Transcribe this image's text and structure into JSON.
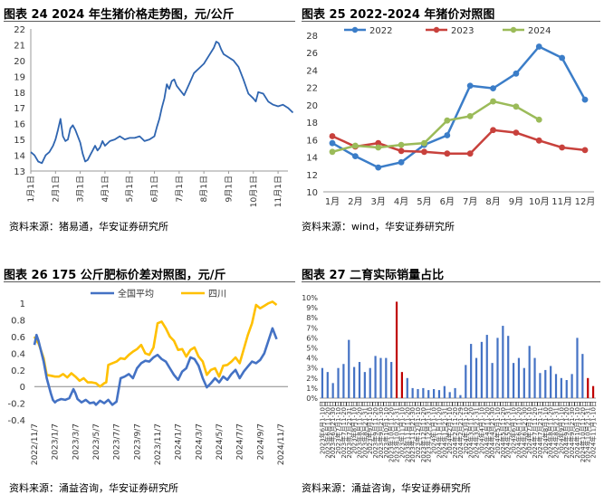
{
  "chart_data": [
    {
      "type": "line",
      "title": "图表 24 2024 年生猪价格走势图，元/公斤",
      "source": "资料来源：猪易通，华安证券研究所",
      "xlabel": "",
      "ylabel": "",
      "categories": [
        "1月1日",
        "2月1日",
        "3月1日",
        "4月1日",
        "5月1日",
        "6月1日",
        "7月1日",
        "8月1日",
        "9月1日",
        "10月1日",
        "11月1日"
      ],
      "ylim": [
        13,
        22
      ],
      "yticks": [
        13,
        14,
        15,
        16,
        17,
        18,
        19,
        20,
        21,
        22
      ],
      "color": "#2f65b0",
      "series": [
        {
          "x": [
            0,
            0.15,
            0.3,
            0.45,
            0.6,
            0.75,
            0.9,
            1.0,
            1.1,
            1.2,
            1.3,
            1.4,
            1.5,
            1.6,
            1.7,
            1.8,
            1.9,
            2.0,
            2.1,
            2.2,
            2.3,
            2.4,
            2.5,
            2.6,
            2.7,
            2.8,
            2.9,
            3.0,
            3.2,
            3.4,
            3.6,
            3.8,
            4.0,
            4.2,
            4.4,
            4.6,
            4.8,
            5.0,
            5.1,
            5.2,
            5.3,
            5.4,
            5.5,
            5.6,
            5.7,
            5.8,
            5.9,
            6.0,
            6.2,
            6.4,
            6.6,
            6.8,
            7.0,
            7.2,
            7.4,
            7.5,
            7.6,
            7.7,
            7.8,
            8.0,
            8.2,
            8.4,
            8.6,
            8.8,
            9.0,
            9.1,
            9.2,
            9.4,
            9.6,
            9.8,
            10.0,
            10.2,
            10.4,
            10.6
          ],
          "values": [
            14.2,
            14.0,
            13.6,
            13.5,
            14.0,
            14.2,
            14.6,
            15.0,
            15.6,
            16.3,
            15.2,
            14.9,
            15.0,
            15.7,
            15.9,
            15.6,
            15.2,
            14.8,
            14.1,
            13.6,
            13.7,
            14.0,
            14.3,
            14.6,
            14.3,
            14.5,
            14.9,
            14.6,
            14.9,
            15.0,
            15.2,
            15.0,
            15.1,
            15.1,
            15.2,
            14.9,
            15.0,
            15.2,
            15.8,
            16.3,
            17.0,
            17.6,
            18.5,
            18.2,
            18.7,
            18.8,
            18.4,
            18.2,
            17.8,
            18.5,
            19.2,
            19.5,
            19.8,
            20.3,
            20.8,
            21.2,
            21.1,
            20.7,
            20.4,
            20.2,
            20.0,
            19.6,
            18.8,
            17.9,
            17.6,
            17.4,
            18.0,
            17.9,
            17.4,
            17.2,
            17.1,
            17.2,
            17.0,
            16.7
          ]
        }
      ]
    },
    {
      "type": "line",
      "title": "图表 25 2022-2024 年猪价对照图",
      "source": "资料来源：wind，华安证券研究所",
      "xlabel": "",
      "ylabel": "",
      "categories": [
        "1月",
        "2月",
        "3月",
        "4月",
        "5月",
        "6月",
        "7月",
        "8月",
        "9月",
        "10月",
        "11月",
        "12月"
      ],
      "ylim": [
        10,
        28
      ],
      "yticks": [
        10,
        12,
        14,
        16,
        18,
        20,
        22,
        24,
        26,
        28
      ],
      "legend": "top",
      "series": [
        {
          "name": "2022",
          "color": "#3b7dc8",
          "values": [
            15.6,
            14.1,
            12.8,
            13.4,
            15.4,
            16.5,
            22.2,
            21.9,
            23.6,
            26.7,
            25.4,
            20.6
          ]
        },
        {
          "name": "2023",
          "color": "#c8413c",
          "values": [
            16.4,
            15.2,
            15.6,
            14.7,
            14.6,
            14.4,
            14.4,
            17.1,
            16.8,
            15.9,
            15.1,
            14.8
          ]
        },
        {
          "name": "2024",
          "color": "#9bbb59",
          "values": [
            14.6,
            15.3,
            15.1,
            15.4,
            15.6,
            18.2,
            18.7,
            20.4,
            19.8,
            18.3,
            null,
            null
          ]
        }
      ]
    },
    {
      "type": "line",
      "title": "图表 26 175 公斤肥标价差对照图，元/斤",
      "source": "资料来源：涌益咨询，华安证券研究所",
      "xlabel": "",
      "ylabel": "",
      "categories": [
        "2022/11/7",
        "2023/1/7",
        "2023/3/7",
        "2023/5/7",
        "2023/7/7",
        "2023/9/7",
        "2023/11/7",
        "2024/1/7",
        "2024/3/7",
        "2024/5/7",
        "2024/7/7",
        "2024/9/7",
        "2024/11/7"
      ],
      "ylim": [
        -0.4,
        1.1
      ],
      "yticks": [
        -0.4,
        -0.2,
        0,
        0.2,
        0.4,
        0.6,
        0.8,
        1.0
      ],
      "ytick_labels": [
        "-0.4",
        "-0.2",
        "0",
        "0.2",
        "0.4",
        "0.6",
        "0.8",
        "1"
      ],
      "legend": "top",
      "series": [
        {
          "name": "全国平均",
          "color": "#4472c4",
          "x": [
            0,
            0.1,
            0.2,
            0.3,
            0.45,
            0.6,
            0.8,
            0.9,
            1.0,
            1.1,
            1.3,
            1.5,
            1.7,
            1.9,
            2.0,
            2.1,
            2.3,
            2.5,
            2.7,
            2.9,
            3.0,
            3.2,
            3.4,
            3.6,
            3.8,
            4.0,
            4.2,
            4.4,
            4.6,
            4.8,
            5.0,
            5.2,
            5.4,
            5.6,
            5.8,
            6.0,
            6.2,
            6.4,
            6.6,
            6.8,
            7.0,
            7.2,
            7.4,
            7.6,
            7.8,
            8.0,
            8.2,
            8.4,
            8.6,
            8.8,
            9.0,
            9.2,
            9.4,
            9.6,
            9.8,
            10.0,
            10.2,
            10.4,
            10.6,
            10.8,
            11.0,
            11.2,
            11.4,
            11.6,
            11.8
          ],
          "values": [
            0.5,
            0.62,
            0.55,
            0.45,
            0.3,
            0.1,
            -0.08,
            -0.16,
            -0.19,
            -0.17,
            -0.15,
            -0.16,
            -0.14,
            -0.03,
            -0.08,
            -0.15,
            -0.19,
            -0.16,
            -0.2,
            -0.19,
            -0.22,
            -0.17,
            -0.2,
            -0.16,
            -0.22,
            -0.18,
            0.1,
            0.12,
            0.15,
            0.1,
            0.22,
            0.28,
            0.31,
            0.3,
            0.35,
            0.38,
            0.33,
            0.3,
            0.22,
            0.14,
            0.08,
            0.18,
            0.22,
            0.35,
            0.33,
            0.25,
            0.1,
            -0.01,
            0.04,
            0.1,
            0.05,
            0.12,
            0.08,
            0.15,
            0.2,
            0.1,
            0.18,
            0.24,
            0.3,
            0.28,
            0.32,
            0.4,
            0.55,
            0.7,
            0.57
          ]
        },
        {
          "name": "四川",
          "color": "#ffc000",
          "x": [
            0,
            0.1,
            0.2,
            0.3,
            0.45,
            0.6,
            0.8,
            1.0,
            1.2,
            1.4,
            1.6,
            1.8,
            2.0,
            2.2,
            2.4,
            2.6,
            2.8,
            3.0,
            3.2,
            3.4,
            3.5,
            3.6,
            3.8,
            4.0,
            4.2,
            4.4,
            4.6,
            4.8,
            5.0,
            5.2,
            5.4,
            5.6,
            5.8,
            6.0,
            6.2,
            6.4,
            6.6,
            6.8,
            7.0,
            7.2,
            7.4,
            7.6,
            7.8,
            8.0,
            8.2,
            8.4,
            8.6,
            8.8,
            9.0,
            9.2,
            9.4,
            9.6,
            9.8,
            10.0,
            10.2,
            10.4,
            10.6,
            10.8,
            11.0,
            11.2,
            11.4,
            11.6,
            11.8
          ],
          "values": [
            0.6,
            0.55,
            0.52,
            0.45,
            0.34,
            0.14,
            0.13,
            0.12,
            0.12,
            0.15,
            0.11,
            0.16,
            0.12,
            0.07,
            0.1,
            0.05,
            0.05,
            0.04,
            0.0,
            0.04,
            0.05,
            0.26,
            0.28,
            0.3,
            0.34,
            0.33,
            0.38,
            0.42,
            0.45,
            0.5,
            0.4,
            0.38,
            0.47,
            0.76,
            0.78,
            0.7,
            0.6,
            0.55,
            0.44,
            0.45,
            0.36,
            0.44,
            0.47,
            0.36,
            0.3,
            0.14,
            0.2,
            0.22,
            0.12,
            0.25,
            0.26,
            0.3,
            0.35,
            0.28,
            0.45,
            0.62,
            0.76,
            0.98,
            0.94,
            0.97,
            1.0,
            1.02,
            0.98
          ]
        }
      ]
    },
    {
      "type": "bar",
      "title": "图表 27 二育实际销量占比",
      "source": "资料来源：涌益咨询，华安证券研究所",
      "xlabel": "",
      "ylabel": "",
      "ylim": [
        0,
        10
      ],
      "ytick_labels": [
        "0%",
        "1%",
        "2%",
        "3%",
        "4%",
        "5%",
        "6%",
        "7%",
        "8%",
        "9%",
        "10%"
      ],
      "categories": [
        "2023年6月1-10日",
        "2023年6月11-20日",
        "2023年6月21-30日",
        "2023年7月1-10日",
        "2023年7月11-20日",
        "2023年7月21-31日",
        "2023年8月1-10日",
        "2023年8月11-20日",
        "2023年8月21-31日",
        "2023年9月1-10日",
        "2023年9月11-20日",
        "2023年9月21-30日",
        "2023年10月1-10日",
        "2023年10月11-20日",
        "2023年10月21-31日",
        "2023年11月1-10日",
        "2023年11月11-20日",
        "2023年11月21-30日",
        "2023年12月1-10日",
        "2023年12月11-20日",
        "2023年12月21-31日",
        "2024年1月1-10日",
        "2024年1月11-20日",
        "2024年1月21-31日",
        "2024年2月1-10日",
        "2024年2月11-20日",
        "2024年2月21-29日",
        "2024年3月1-10日",
        "2024年3月11-20日",
        "2024年3月21-31日",
        "2024年4月1-10日",
        "2024年4月11-20日",
        "2024年4月21-30日",
        "2024年5月1-10日",
        "2024年5月11-20日",
        "2024年5月21-31日",
        "2024年6月1-10日",
        "2024年6月11-20日",
        "2024年6月21-30日",
        "2024年7月1-10日",
        "2024年7月11-20日",
        "2024年7月21-31日",
        "2024年8月1-10日",
        "2024年8月11-20日",
        "2024年8月21-31日",
        "2024年9月1-10日",
        "2024年9月11-20日",
        "2024年9月21-30日",
        "2024年10月1-10日",
        "2024年10月11-20日",
        "2024年10月21-31日",
        "2024年11月1-10日"
      ],
      "values": [
        3.0,
        2.6,
        1.5,
        3.0,
        3.4,
        5.8,
        3.1,
        3.6,
        2.6,
        3.0,
        4.2,
        4.0,
        4.0,
        3.6,
        9.6,
        2.6,
        2.0,
        1.0,
        0.9,
        1.0,
        0.8,
        0.9,
        0.8,
        1.2,
        0.6,
        1.0,
        0.3,
        3.3,
        5.4,
        4.0,
        5.6,
        6.3,
        3.5,
        6.0,
        7.2,
        6.2,
        3.5,
        4.0,
        3.0,
        5.2,
        4.0,
        2.5,
        2.8,
        3.2,
        2.4,
        2.0,
        1.8,
        2.4,
        6.0,
        4.4,
        2.0,
        1.2
      ],
      "colors": {
        "default": "#4472c4",
        "highlight": "#c00000"
      },
      "highlight_indices": [
        14,
        15,
        50,
        51
      ]
    }
  ]
}
